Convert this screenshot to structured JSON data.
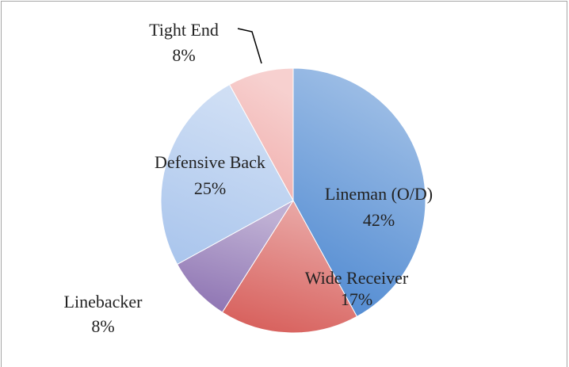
{
  "chart_data": {
    "type": "pie",
    "categories": [
      "Lineman (O/D)",
      "Wide Receiver",
      "Linebacker",
      "Defensive Back",
      "Tight End"
    ],
    "values": [
      42,
      17,
      8,
      25,
      8
    ],
    "value_labels": [
      "42%",
      "17%",
      "8%",
      "25%",
      "8%"
    ],
    "colors": [
      "#4a86d0",
      "#d65a56",
      "#8a6fb0",
      "#a8c4ec",
      "#f0aaa8"
    ]
  }
}
